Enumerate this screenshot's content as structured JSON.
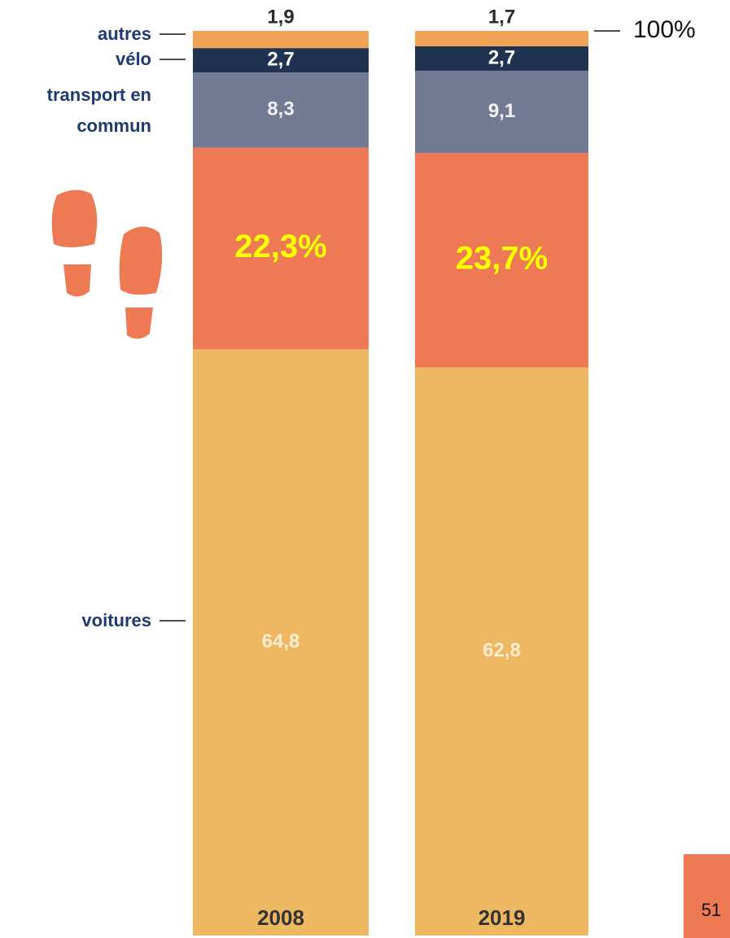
{
  "chart_data": {
    "type": "stacked_bar",
    "categories": [
      "2008",
      "2019"
    ],
    "series": [
      {
        "name": "voitures",
        "color": "#eeb762",
        "values": [
          64.8,
          62.8
        ],
        "value_labels": [
          "64,8",
          "62,8"
        ]
      },
      {
        "color": "#ee7a55",
        "values": [
          22.3,
          23.7
        ],
        "value_labels": [
          "22,3%",
          "23,7%"
        ]
      },
      {
        "name": "transport en commun",
        "color": "#737b94",
        "values": [
          8.3,
          9.1
        ],
        "value_labels": [
          "8,3",
          "9,1"
        ]
      },
      {
        "name": "vélo",
        "color": "#1f3350",
        "values": [
          2.7,
          2.7
        ],
        "value_labels": [
          "2,7",
          "2,7"
        ]
      },
      {
        "name": "autres",
        "color": "#f0a255",
        "values": [
          1.9,
          1.7
        ],
        "value_labels": [
          "1,9",
          "1,7"
        ]
      }
    ],
    "ylim": [
      0,
      100
    ],
    "yticks": [
      {
        "value": 100,
        "label": "100%"
      }
    ],
    "page_number": "51"
  }
}
